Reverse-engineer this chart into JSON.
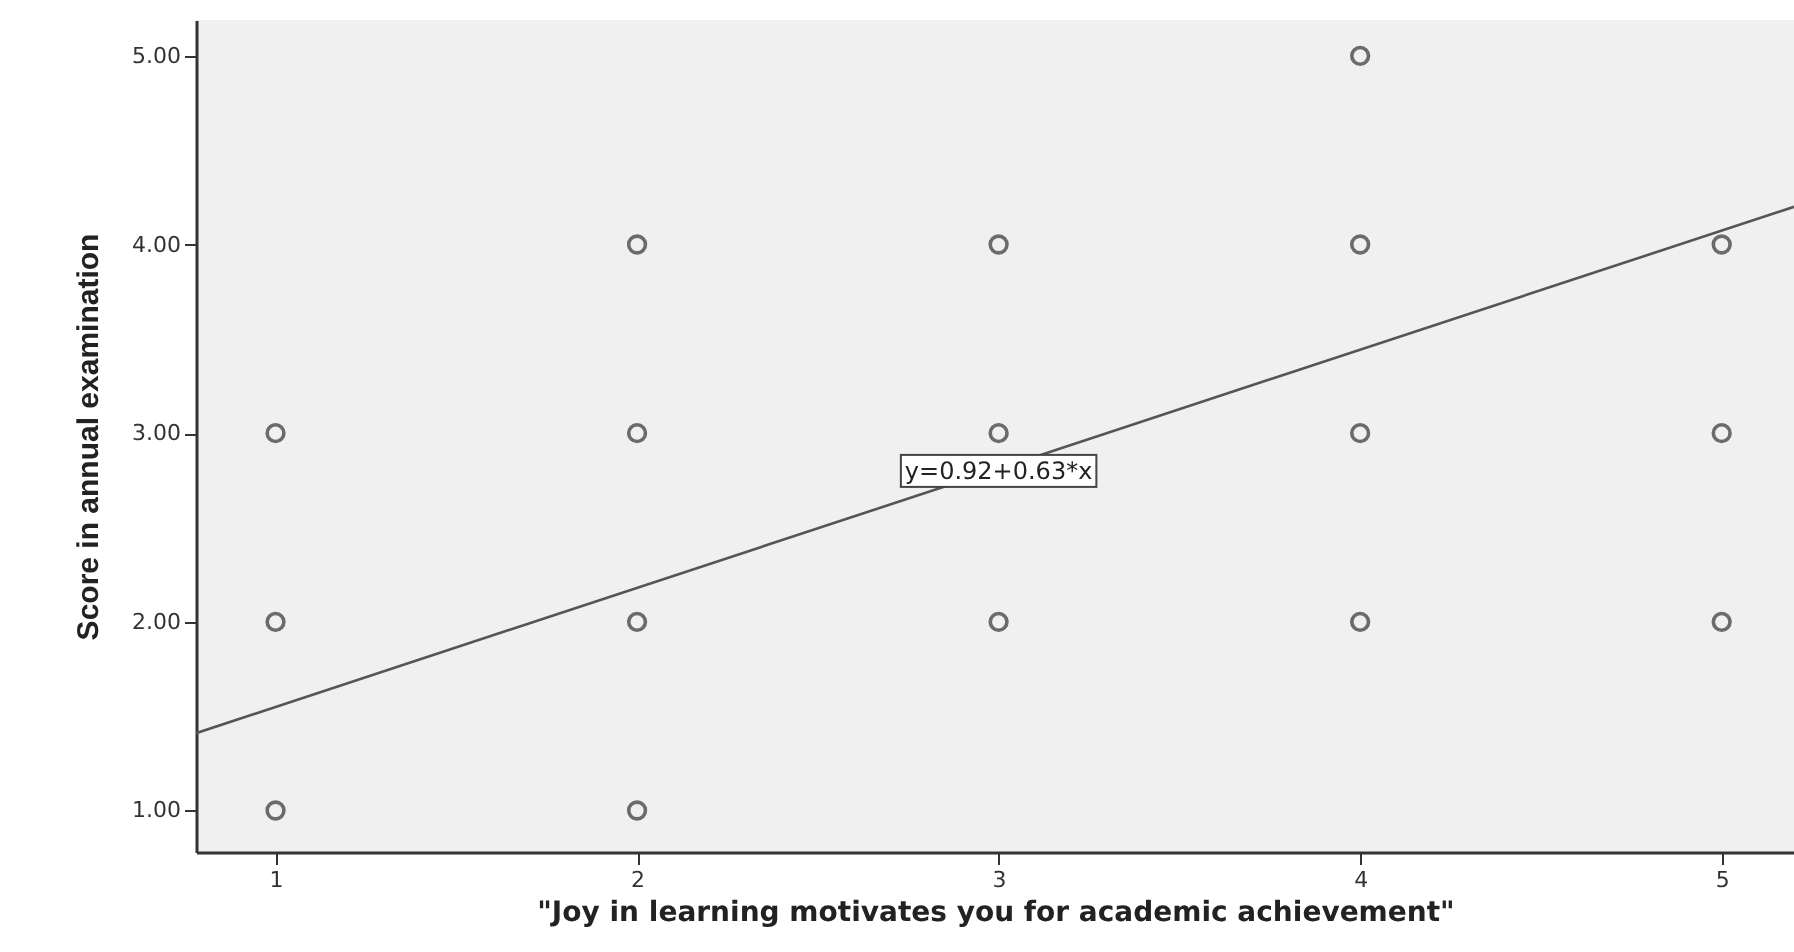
{
  "chart_data": {
    "type": "scatter",
    "xlabel": "\"Joy in learning motivates you for academic achievement\"",
    "ylabel": "Score in annual examination",
    "xlim": [
      0.78,
      5.2
    ],
    "ylim": [
      0.78,
      5.19
    ],
    "xticks": [
      1,
      2,
      3,
      4,
      5
    ],
    "yticks": [
      {
        "value": 1,
        "label": "1.00"
      },
      {
        "value": 2,
        "label": "2.00"
      },
      {
        "value": 3,
        "label": "3.00"
      },
      {
        "value": 4,
        "label": "4.00"
      },
      {
        "value": 5,
        "label": "5.00"
      }
    ],
    "grid": false,
    "series": [
      {
        "type": "scatter",
        "marker": "circle",
        "color": "#333333",
        "x": [
          1,
          1,
          1,
          2,
          2,
          2,
          2,
          3,
          3,
          3,
          4,
          4,
          4,
          4,
          5,
          5,
          5
        ],
        "values": [
          1,
          2,
          3,
          1,
          2,
          3,
          4,
          2,
          3,
          4,
          2,
          3,
          4,
          5,
          2,
          3,
          4
        ]
      },
      {
        "type": "line",
        "color": "#555555",
        "x": [
          0.78,
          5.2
        ],
        "values": [
          1.41,
          4.2
        ],
        "line_style": "solid"
      }
    ],
    "annotations": [
      {
        "text": "y=0.92+0.63*x",
        "x": 3.0,
        "y": 2.8
      }
    ]
  }
}
